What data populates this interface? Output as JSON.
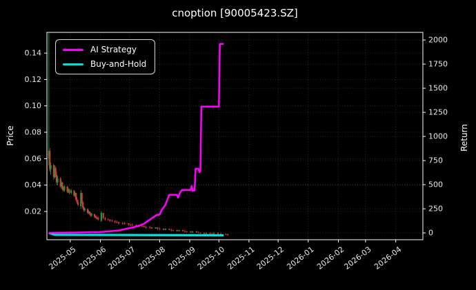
{
  "title": "cnoption [90005423.SZ]",
  "legend": {
    "position": "upper left",
    "items": [
      {
        "label": "AI Strategy",
        "color": "#ff00ff"
      },
      {
        "label": "Buy-and-Hold",
        "color": "#00e0e0"
      }
    ]
  },
  "colors": {
    "background": "#000000",
    "spine": "#ffffff",
    "tick_label": "#e9e9e9",
    "grid": "rgba(255,255,255,0.22)",
    "candle_up": "#16a02c",
    "candle_down": "#d23939",
    "ai_strategy": "#ff00ff",
    "buy_and_hold": "#00e0e0"
  },
  "chart_data": {
    "type": "candlestick",
    "title": "cnoption [90005423.SZ]",
    "grid": true,
    "legend_position": "upper left",
    "x_axis": {
      "ticks": [
        "2025-05",
        "2025-06",
        "2025-07",
        "2025-08",
        "2025-09",
        "2025-10",
        "2025-11",
        "2025-12",
        "2026-01",
        "2026-02",
        "2026-03",
        "2026-04"
      ],
      "range": [
        "2025-04-07",
        "2026-04-29"
      ]
    },
    "price_axis": {
      "label": "Price",
      "ticks": [
        0.02,
        0.04,
        0.06,
        0.08,
        0.1,
        0.12,
        0.14
      ],
      "range": [
        -0.0014,
        0.1557
      ]
    },
    "return_axis": {
      "label": "Return",
      "ticks": [
        0,
        250,
        500,
        750,
        1000,
        1250,
        1500,
        1750,
        2000
      ],
      "range": [
        -71,
        2079
      ]
    },
    "candle_colors": {
      "up": "#16a02c",
      "down": "#d23939"
    },
    "candles": [
      [
        "2025-04-09",
        0.06,
        0.155,
        0.055,
        0.066
      ],
      [
        "2025-04-10",
        0.066,
        0.068,
        0.05,
        0.052
      ],
      [
        "2025-04-11",
        0.052,
        0.057,
        0.048,
        0.055
      ],
      [
        "2025-04-14",
        0.055,
        0.056,
        0.044,
        0.046
      ],
      [
        "2025-04-15",
        0.046,
        0.055,
        0.045,
        0.053
      ],
      [
        "2025-04-16",
        0.053,
        0.054,
        0.046,
        0.048
      ],
      [
        "2025-04-17",
        0.048,
        0.05,
        0.04,
        0.042
      ],
      [
        "2025-04-18",
        0.042,
        0.047,
        0.04,
        0.045
      ],
      [
        "2025-04-21",
        0.045,
        0.046,
        0.038,
        0.039
      ],
      [
        "2025-04-22",
        0.039,
        0.043,
        0.037,
        0.042
      ],
      [
        "2025-04-23",
        0.042,
        0.042,
        0.036,
        0.037
      ],
      [
        "2025-04-24",
        0.037,
        0.039,
        0.035,
        0.036
      ],
      [
        "2025-04-25",
        0.036,
        0.04,
        0.035,
        0.039
      ],
      [
        "2025-04-28",
        0.039,
        0.039,
        0.034,
        0.035
      ],
      [
        "2025-04-29",
        0.035,
        0.038,
        0.034,
        0.037
      ],
      [
        "2025-04-30",
        0.037,
        0.037,
        0.033,
        0.034
      ],
      [
        "2025-05-02",
        0.034,
        0.037,
        0.033,
        0.036
      ],
      [
        "2025-05-05",
        0.036,
        0.036,
        0.031,
        0.032
      ],
      [
        "2025-05-06",
        0.032,
        0.035,
        0.031,
        0.034
      ],
      [
        "2025-05-07",
        0.034,
        0.034,
        0.028,
        0.029
      ],
      [
        "2025-05-08",
        0.029,
        0.031,
        0.026,
        0.027
      ],
      [
        "2025-05-09",
        0.027,
        0.029,
        0.024,
        0.025
      ],
      [
        "2025-05-12",
        0.024,
        0.036,
        0.022,
        0.034
      ],
      [
        "2025-05-13",
        0.034,
        0.034,
        0.026,
        0.027
      ],
      [
        "2025-05-14",
        0.027,
        0.028,
        0.022,
        0.023
      ],
      [
        "2025-05-15",
        0.023,
        0.024,
        0.02,
        0.021
      ],
      [
        "2025-05-16",
        0.021,
        0.023,
        0.02,
        0.022
      ],
      [
        "2025-05-19",
        0.022,
        0.022,
        0.018,
        0.019
      ],
      [
        "2025-05-20",
        0.019,
        0.021,
        0.018,
        0.02
      ],
      [
        "2025-05-21",
        0.02,
        0.02,
        0.017,
        0.018
      ],
      [
        "2025-05-22",
        0.018,
        0.019,
        0.016,
        0.017
      ],
      [
        "2025-05-23",
        0.017,
        0.019,
        0.016,
        0.018
      ],
      [
        "2025-05-26",
        0.018,
        0.018,
        0.015,
        0.016
      ],
      [
        "2025-05-27",
        0.016,
        0.017,
        0.015,
        0.016
      ],
      [
        "2025-05-28",
        0.016,
        0.017,
        0.014,
        0.015
      ],
      [
        "2025-05-29",
        0.015,
        0.016,
        0.014,
        0.015
      ],
      [
        "2025-05-30",
        0.015,
        0.016,
        0.013,
        0.014
      ],
      [
        "2025-06-02",
        0.013,
        0.02,
        0.012,
        0.019
      ],
      [
        "2025-06-04",
        0.019,
        0.019,
        0.014,
        0.015
      ],
      [
        "2025-06-06",
        0.015,
        0.016,
        0.013,
        0.014
      ],
      [
        "2025-06-09",
        0.014,
        0.015,
        0.013,
        0.014
      ],
      [
        "2025-06-11",
        0.014,
        0.014,
        0.012,
        0.013
      ],
      [
        "2025-06-13",
        0.013,
        0.014,
        0.012,
        0.013
      ],
      [
        "2025-06-16",
        0.013,
        0.013,
        0.011,
        0.012
      ],
      [
        "2025-06-18",
        0.012,
        0.013,
        0.011,
        0.012
      ],
      [
        "2025-06-20",
        0.012,
        0.012,
        0.01,
        0.011
      ],
      [
        "2025-06-24",
        0.011,
        0.012,
        0.01,
        0.011
      ],
      [
        "2025-06-26",
        0.011,
        0.012,
        0.01,
        0.011
      ],
      [
        "2025-06-30",
        0.011,
        0.011,
        0.009,
        0.01
      ],
      [
        "2025-07-02",
        0.01,
        0.011,
        0.009,
        0.01
      ],
      [
        "2025-07-04",
        0.01,
        0.011,
        0.009,
        0.01
      ],
      [
        "2025-07-08",
        0.01,
        0.01,
        0.008,
        0.009
      ],
      [
        "2025-07-10",
        0.009,
        0.01,
        0.008,
        0.009
      ],
      [
        "2025-07-14",
        0.009,
        0.01,
        0.008,
        0.009
      ],
      [
        "2025-07-16",
        0.009,
        0.009,
        0.008,
        0.008
      ],
      [
        "2025-07-18",
        0.008,
        0.009,
        0.007,
        0.008
      ],
      [
        "2025-07-22",
        0.008,
        0.009,
        0.007,
        0.008
      ],
      [
        "2025-07-24",
        0.008,
        0.008,
        0.007,
        0.007
      ],
      [
        "2025-07-28",
        0.007,
        0.008,
        0.007,
        0.008
      ],
      [
        "2025-07-30",
        0.008,
        0.008,
        0.006,
        0.007
      ],
      [
        "2025-08-01",
        0.007,
        0.008,
        0.006,
        0.007
      ],
      [
        "2025-08-05",
        0.007,
        0.007,
        0.006,
        0.006
      ],
      [
        "2025-08-07",
        0.006,
        0.007,
        0.006,
        0.007
      ],
      [
        "2025-08-11",
        0.007,
        0.007,
        0.006,
        0.006
      ],
      [
        "2025-08-13",
        0.006,
        0.007,
        0.005,
        0.006
      ],
      [
        "2025-08-15",
        0.006,
        0.006,
        0.005,
        0.006
      ],
      [
        "2025-08-19",
        0.006,
        0.006,
        0.005,
        0.005
      ],
      [
        "2025-08-21",
        0.005,
        0.006,
        0.005,
        0.006
      ],
      [
        "2025-08-25",
        0.006,
        0.006,
        0.005,
        0.005
      ],
      [
        "2025-08-27",
        0.005,
        0.006,
        0.004,
        0.005
      ],
      [
        "2025-08-29",
        0.005,
        0.005,
        0.004,
        0.005
      ],
      [
        "2025-09-02",
        0.005,
        0.005,
        0.004,
        0.004
      ],
      [
        "2025-09-04",
        0.004,
        0.005,
        0.004,
        0.005
      ],
      [
        "2025-09-08",
        0.005,
        0.005,
        0.004,
        0.004
      ],
      [
        "2025-09-10",
        0.004,
        0.005,
        0.004,
        0.004
      ],
      [
        "2025-09-12",
        0.004,
        0.004,
        0.003,
        0.004
      ],
      [
        "2025-09-16",
        0.004,
        0.004,
        0.003,
        0.003
      ],
      [
        "2025-09-18",
        0.003,
        0.004,
        0.003,
        0.004
      ],
      [
        "2025-09-22",
        0.004,
        0.004,
        0.003,
        0.003
      ],
      [
        "2025-09-24",
        0.003,
        0.004,
        0.003,
        0.003
      ],
      [
        "2025-09-26",
        0.003,
        0.004,
        0.003,
        0.004
      ],
      [
        "2025-09-30",
        0.004,
        0.004,
        0.003,
        0.003
      ],
      [
        "2025-10-03",
        0.003,
        0.004,
        0.002,
        0.003
      ],
      [
        "2025-10-08",
        0.003,
        0.003,
        0.002,
        0.003
      ],
      [
        "2025-10-10",
        0.003,
        0.003,
        0.002,
        0.002
      ]
    ],
    "series": [
      {
        "name": "AI Strategy",
        "type": "line",
        "axis": "return",
        "color": "#ff00ff",
        "points": [
          [
            "2025-04-09",
            0
          ],
          [
            "2025-05-01",
            2
          ],
          [
            "2025-06-01",
            8
          ],
          [
            "2025-06-20",
            25
          ],
          [
            "2025-07-01",
            50
          ],
          [
            "2025-07-10",
            70
          ],
          [
            "2025-07-16",
            95
          ],
          [
            "2025-07-23",
            145
          ],
          [
            "2025-07-29",
            185
          ],
          [
            "2025-08-01",
            190
          ],
          [
            "2025-08-03",
            235
          ],
          [
            "2025-08-07",
            290
          ],
          [
            "2025-08-09",
            345
          ],
          [
            "2025-08-11",
            395
          ],
          [
            "2025-08-19",
            395
          ],
          [
            "2025-08-20",
            365
          ],
          [
            "2025-08-22",
            415
          ],
          [
            "2025-08-24",
            445
          ],
          [
            "2025-09-02",
            445
          ],
          [
            "2025-09-03",
            485
          ],
          [
            "2025-09-04",
            435
          ],
          [
            "2025-09-06",
            440
          ],
          [
            "2025-09-07",
            665
          ],
          [
            "2025-09-10",
            665
          ],
          [
            "2025-09-11",
            630
          ],
          [
            "2025-09-12",
            640
          ],
          [
            "2025-09-13",
            1310
          ],
          [
            "2025-10-01",
            1310
          ],
          [
            "2025-10-02",
            1960
          ],
          [
            "2025-10-06",
            1960
          ]
        ]
      },
      {
        "name": "Buy-and-Hold",
        "type": "line",
        "axis": "return",
        "color": "#00e0e0",
        "points": [
          [
            "2025-04-09",
            0
          ],
          [
            "2025-04-15",
            -20
          ],
          [
            "2025-10-06",
            -25
          ]
        ]
      }
    ]
  }
}
